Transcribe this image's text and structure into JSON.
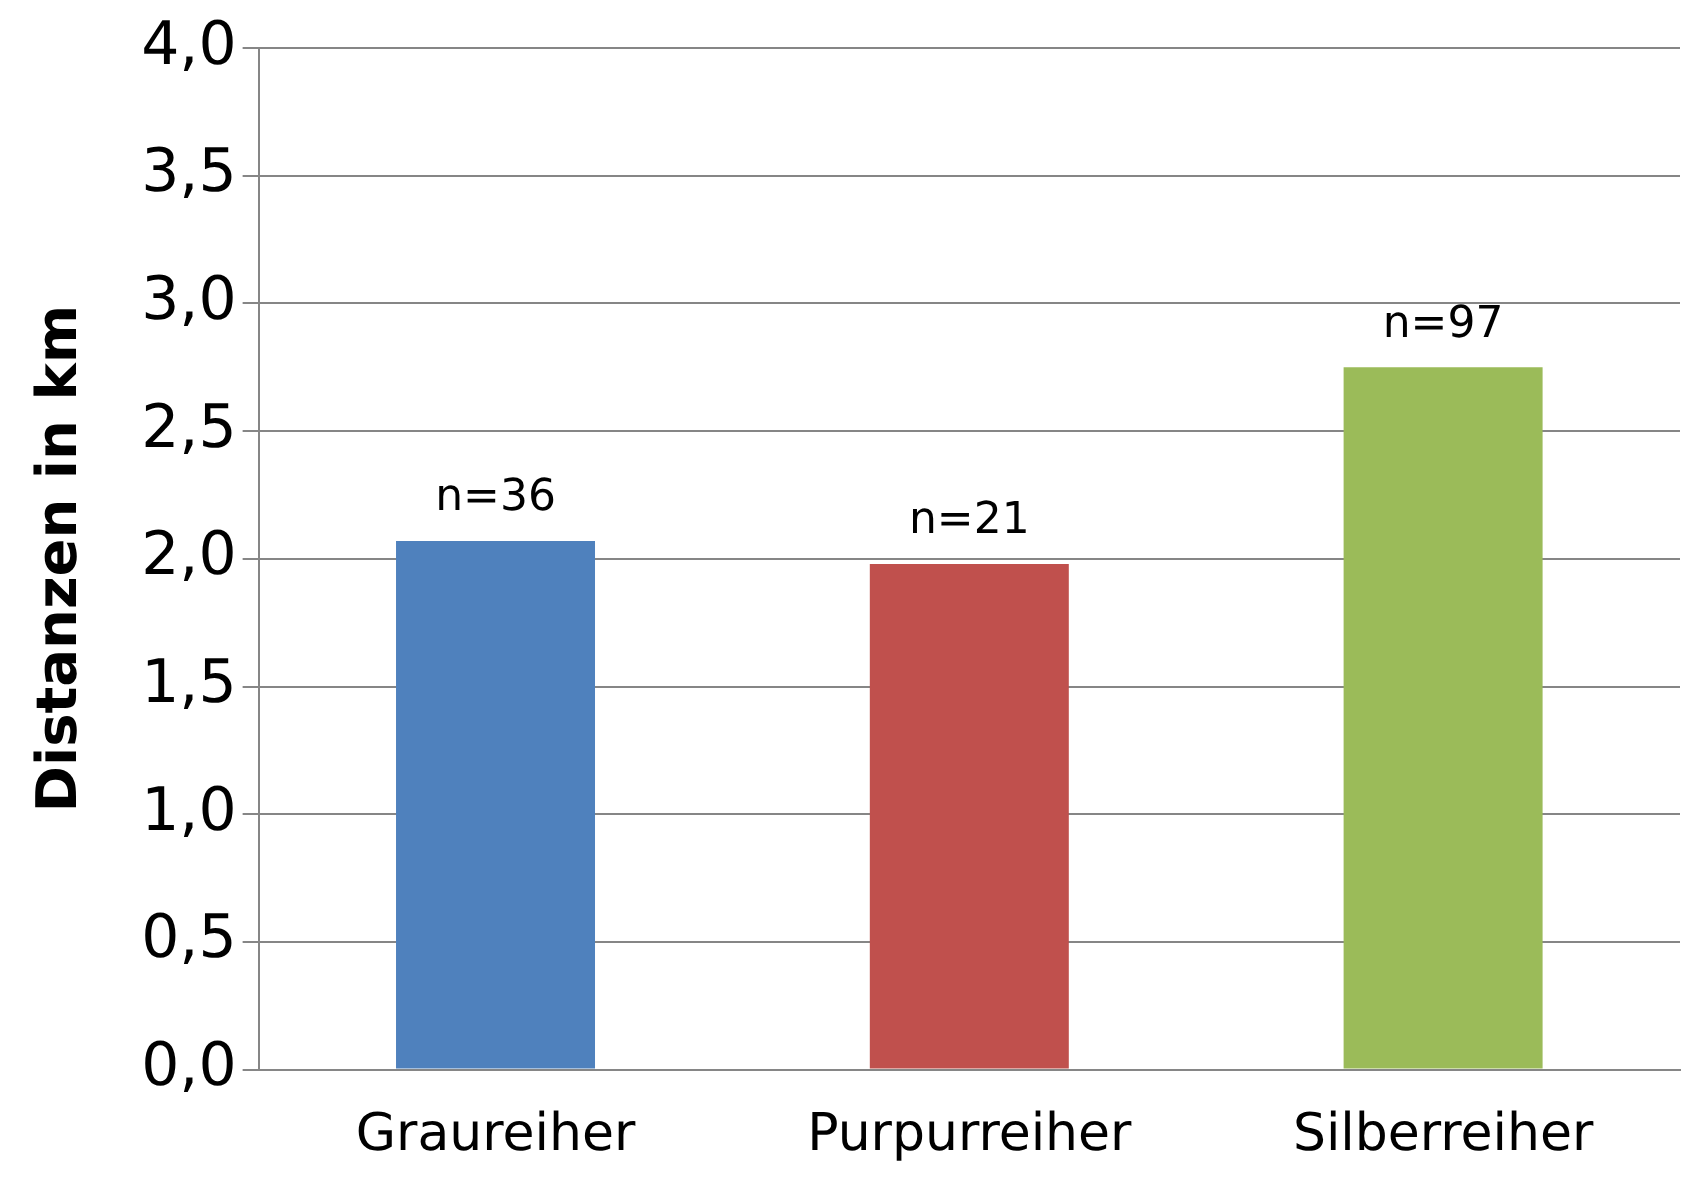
{
  "chart_data": {
    "type": "bar",
    "ylabel": "Distanzen in km",
    "categories": [
      "Graureiher",
      "Purpurreiher",
      "Silberreiher"
    ],
    "values": [
      2.07,
      1.98,
      2.75
    ],
    "colors": [
      "#4f81bd",
      "#c0504d",
      "#9bbb59"
    ],
    "annotations": [
      {
        "text": "n=36",
        "x": "Graureiher",
        "y": 2.07
      },
      {
        "text": "n=21",
        "x": "Purpurreiher",
        "y": 1.98
      },
      {
        "text": "n=97",
        "x": "Silberreiher",
        "y": 2.75
      }
    ],
    "ylim": [
      0,
      4
    ],
    "yticks": [
      {
        "value": 0,
        "label": "0,0"
      },
      {
        "value": 0.5,
        "label": "0,5"
      },
      {
        "value": 1,
        "label": "1,0"
      },
      {
        "value": 1.5,
        "label": "1,5"
      },
      {
        "value": 2,
        "label": "2,0"
      },
      {
        "value": 2.5,
        "label": "2,5"
      },
      {
        "value": 3,
        "label": "3,0"
      },
      {
        "value": 3.5,
        "label": "3,5"
      },
      {
        "value": 4,
        "label": "4,0"
      }
    ],
    "grid": "y",
    "legend": false
  }
}
